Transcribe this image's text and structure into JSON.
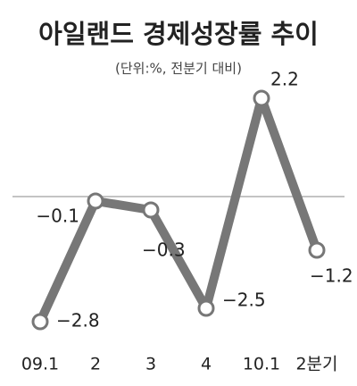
{
  "chart_data": {
    "type": "line",
    "title": "아일랜드 경제성장률 추이",
    "subtitle": "(단위:%, 전분기 대비)",
    "categories": [
      "09.1",
      "2",
      "3",
      "4",
      "10.1",
      "2분기"
    ],
    "values": [
      -2.8,
      -0.1,
      -0.3,
      -2.5,
      2.2,
      -1.2
    ],
    "value_labels": [
      "−2.8",
      "−0.1",
      "−0.3",
      "−2.5",
      "2.2",
      "−1.2"
    ],
    "color": "#777777",
    "ylim": [
      -3.2,
      2.6
    ]
  }
}
